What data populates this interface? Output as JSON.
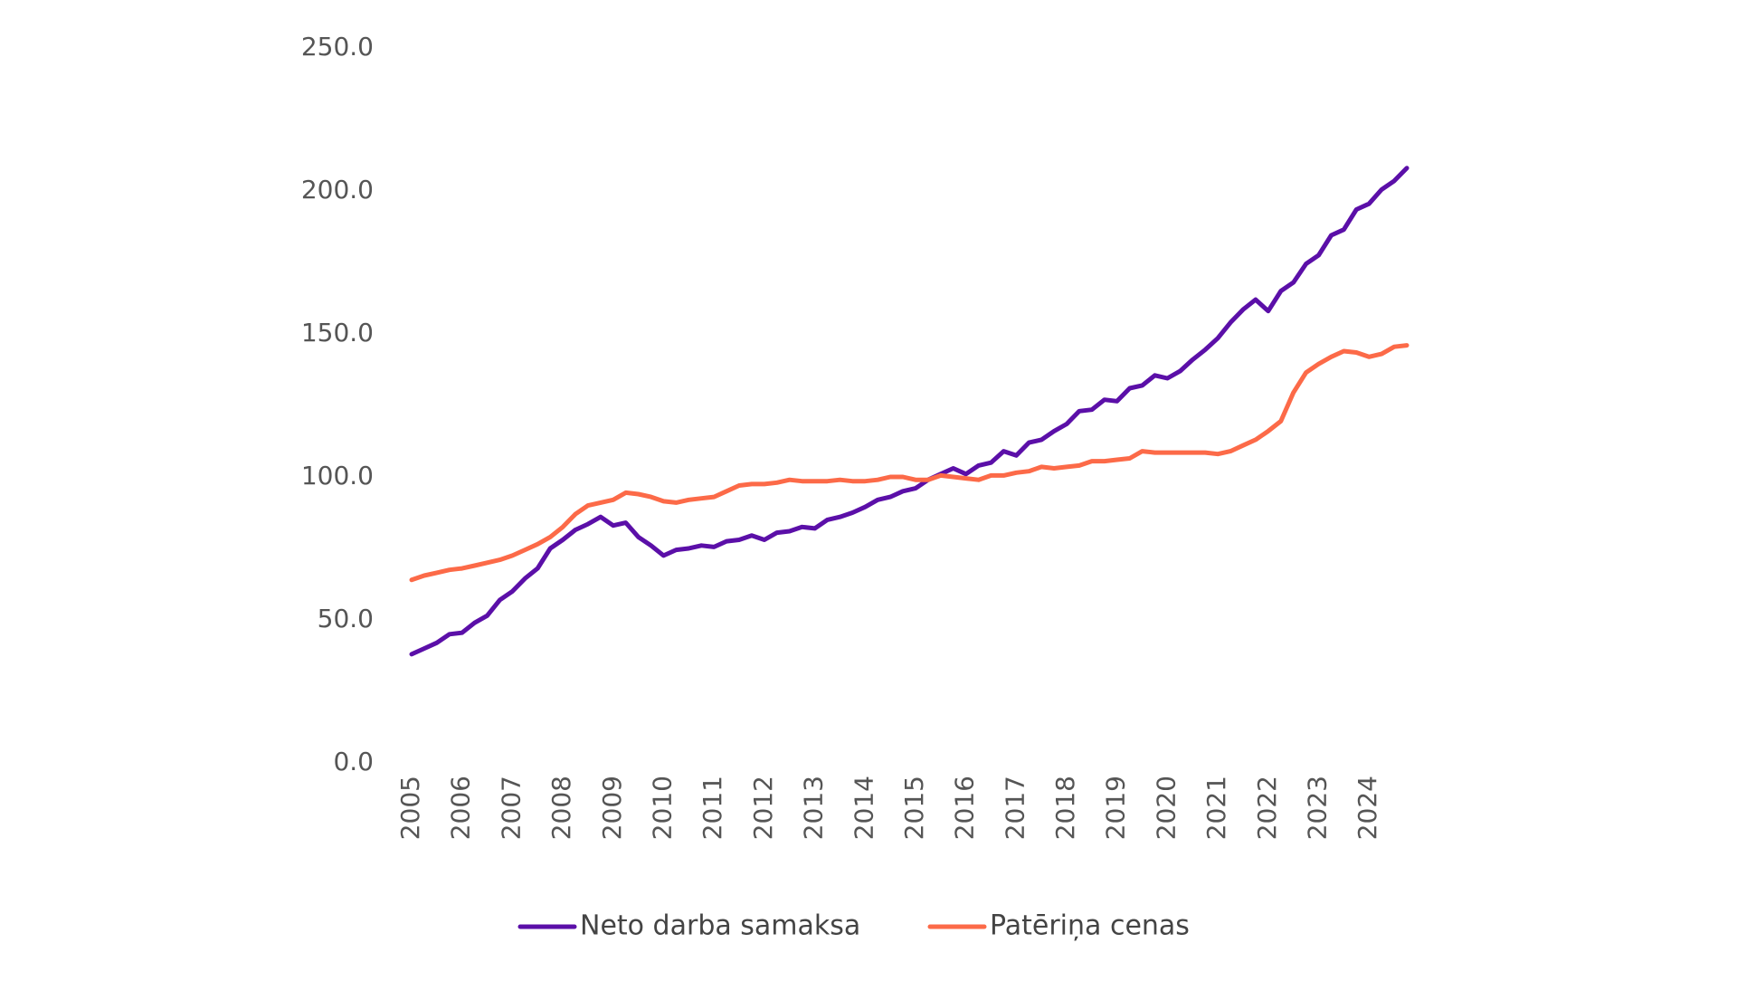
{
  "chart_data": {
    "type": "line",
    "categories": [
      "2005",
      null,
      null,
      null,
      "2006",
      null,
      null,
      null,
      "2007",
      null,
      null,
      null,
      "2008",
      null,
      null,
      null,
      "2009",
      null,
      null,
      null,
      "2010",
      null,
      null,
      null,
      "2011",
      null,
      null,
      null,
      "2012",
      null,
      null,
      null,
      "2013",
      null,
      null,
      null,
      "2014",
      null,
      null,
      null,
      "2015",
      null,
      null,
      null,
      "2016",
      null,
      null,
      null,
      "2017",
      null,
      null,
      null,
      "2018",
      null,
      null,
      null,
      "2019",
      null,
      null,
      null,
      "2020",
      null,
      null,
      null,
      "2021",
      null,
      null,
      null,
      "2022",
      null,
      null,
      null,
      "2023",
      null,
      null,
      null,
      "2024",
      null,
      null,
      null
    ],
    "series": [
      {
        "name": "Neto darba samaksa",
        "color": "#5b0fa8",
        "values": [
          38,
          40,
          42,
          45,
          45.5,
          49,
          51.5,
          57,
          60,
          64.5,
          68,
          75,
          78,
          81.5,
          83.5,
          86,
          83,
          84,
          79,
          76,
          72.5,
          74.5,
          75,
          76,
          75.5,
          77.5,
          78,
          79.5,
          78,
          80.5,
          81,
          82.5,
          82,
          85,
          86,
          87.5,
          89.5,
          92,
          93,
          95,
          96,
          99,
          101,
          103,
          101,
          104,
          105,
          109,
          107.5,
          112,
          113,
          116,
          118.5,
          123,
          123.5,
          127,
          126.5,
          131,
          132,
          135.5,
          134.5,
          137,
          141,
          144.5,
          148.5,
          154,
          158.5,
          162,
          158,
          165,
          168,
          174.5,
          177.5,
          184.5,
          186.5,
          193.5,
          195.5,
          200.5,
          203.5,
          208
        ]
      },
      {
        "name": "Patēriņa cenas",
        "color": "#fc6a48",
        "values": [
          64,
          65.5,
          66.5,
          67.5,
          68,
          69,
          70,
          71,
          72.5,
          74.5,
          76.5,
          79,
          82.5,
          87,
          90,
          91,
          92,
          94.5,
          94,
          93,
          91.5,
          91,
          92,
          92.5,
          93,
          95,
          97,
          97.5,
          97.5,
          98,
          99,
          98.5,
          98.5,
          98.5,
          99,
          98.5,
          98.5,
          99,
          100,
          100,
          99,
          99,
          100.5,
          100,
          99.5,
          99,
          100.5,
          100.5,
          101.5,
          102,
          103.5,
          103,
          103.5,
          104,
          105.5,
          105.5,
          106,
          106.5,
          109,
          108.5,
          108.5,
          108.5,
          108.5,
          108.5,
          108,
          109,
          111,
          113,
          116,
          119.5,
          129.5,
          136.5,
          139.5,
          142,
          144,
          143.5,
          142,
          143,
          145.5,
          146
        ]
      }
    ],
    "ylim": [
      0,
      250
    ],
    "yticks": [
      {
        "value": 0,
        "label": "0.0"
      },
      {
        "value": 50,
        "label": "50.0"
      },
      {
        "value": 100,
        "label": "100.0"
      },
      {
        "value": 150,
        "label": "150.0"
      },
      {
        "value": 200,
        "label": "200.0"
      },
      {
        "value": 250,
        "label": "250.0"
      }
    ],
    "grid": false,
    "legend": "bottom"
  }
}
